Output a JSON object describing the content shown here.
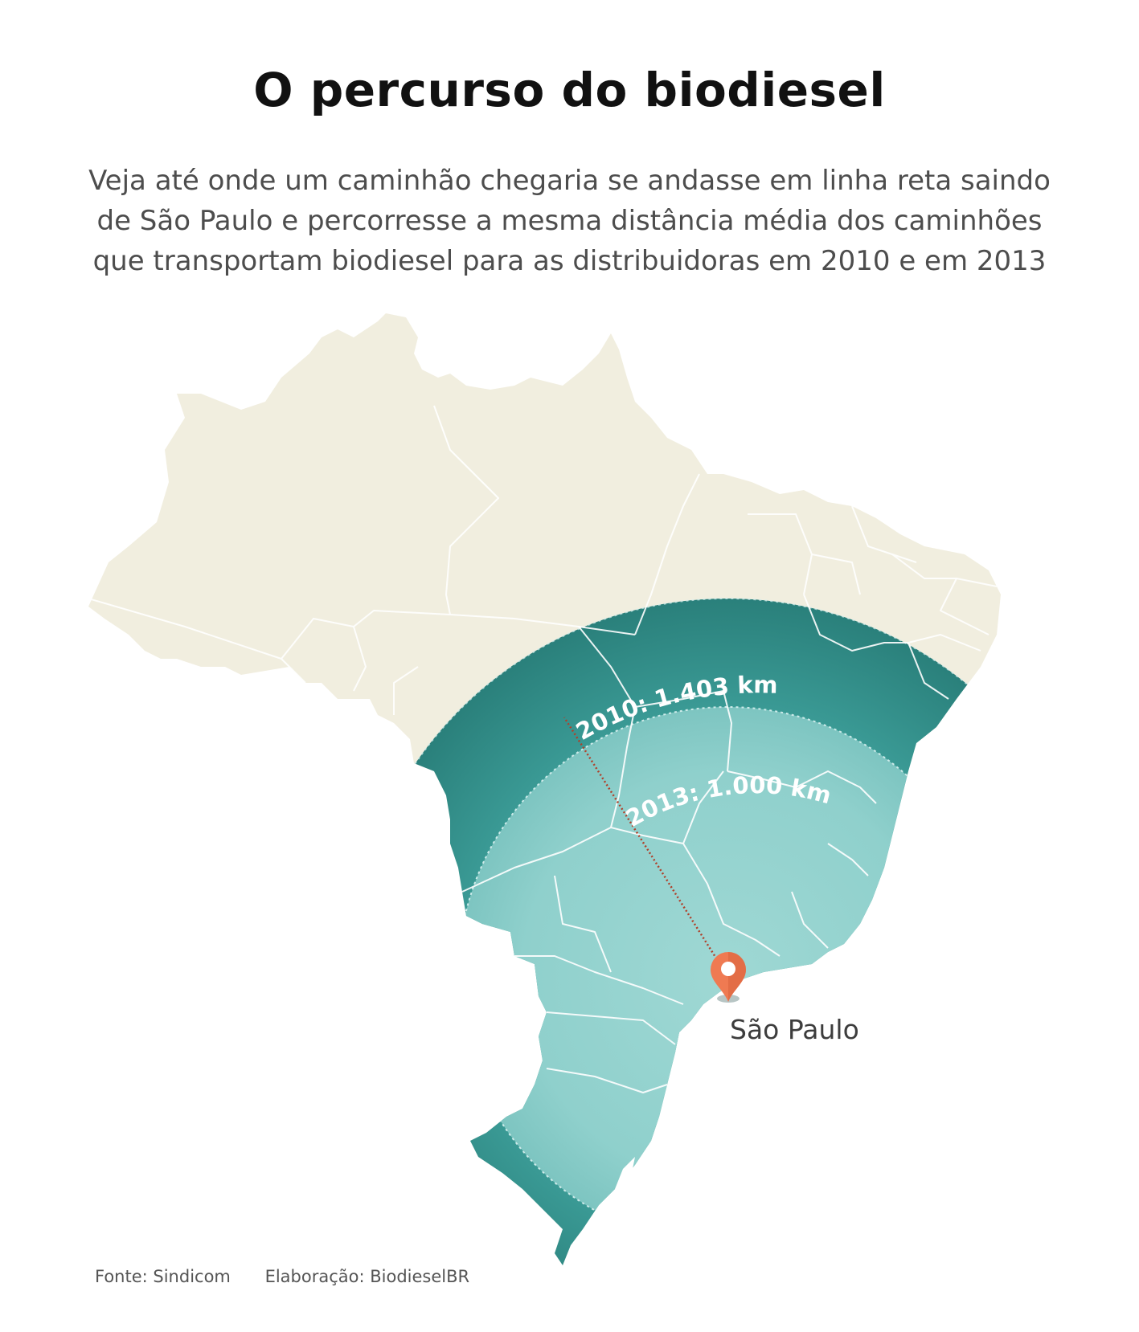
{
  "header": {
    "title": "O percurso do biodiesel",
    "subtitle_lines": [
      "Veja até onde um caminhão chegaria se andasse em linha reta saindo",
      "de São Paulo e percorresse a mesma distância média dos caminhões",
      "que transportam biodiesel para as distribuidoras em 2010 e em 2013"
    ]
  },
  "map": {
    "region": "Brasil",
    "origin_label": "São Paulo",
    "rings": [
      {
        "label": "2010: 1.403 km",
        "distance_km": 1403,
        "color": "#2f8c87"
      },
      {
        "label": "2013: 1.000 km",
        "distance_km": 1000,
        "color": "#8fd0cc"
      }
    ],
    "land_color": "#f1eedf",
    "border_color": "#ffffff",
    "marker_color": "#ef7a52",
    "route_color": "#b0402a"
  },
  "footer": {
    "source": "Fonte: Sindicom",
    "credit": "Elaboração: BiodieselBR"
  }
}
